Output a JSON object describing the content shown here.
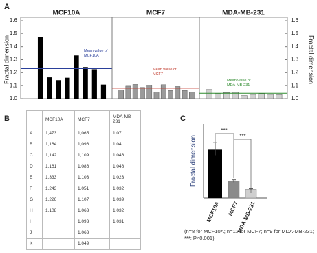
{
  "panel_labels": [
    "A",
    "B",
    "C"
  ],
  "chart_data": [
    {
      "type": "bar",
      "title": "MCF10A",
      "title_color": "#1f5fa8",
      "color": "#000000",
      "ylabel": "Fractal dimension",
      "values": [
        1.473,
        1.164,
        1.142,
        1.161,
        1.333,
        1.243,
        1.226,
        1.108
      ],
      "ylim": [
        1.0,
        1.6
      ],
      "yticks": [
        {
          "value": 1.0,
          "label": "1.0"
        },
        1.1,
        1.2,
        1.3,
        1.4,
        1.5,
        1.6
      ],
      "mean": 1.231,
      "mean_color": "#2a3f9a",
      "annotation": "Mean value of MCF10A"
    },
    {
      "type": "bar",
      "title": "MCF7",
      "title_color": "#8b1c3c",
      "color": "#9a9a9a",
      "values": [
        1.065,
        1.096,
        1.109,
        1.086,
        1.103,
        1.051,
        1.107,
        1.063,
        1.093,
        1.063,
        1.049
      ],
      "ylim": [
        1.0,
        1.6
      ],
      "mean": 1.08,
      "mean_color": "#c0392b",
      "annotation": "Mean value of MCF7"
    },
    {
      "type": "bar",
      "title": "MDA-MB-231",
      "title_color": "#2e8b2e",
      "color": "#d0d0d0",
      "ylabel": "Fractal dimension",
      "values": [
        1.07,
        1.04,
        1.046,
        1.048,
        1.023,
        1.032,
        1.039,
        1.032,
        1.031
      ],
      "ylim": [
        1.0,
        1.6
      ],
      "yticks": [
        {
          "value": 1.0,
          "label": "1.0"
        },
        1.1,
        1.2,
        1.3,
        1.4,
        1.5,
        1.6
      ],
      "mean": 1.041,
      "mean_color": "#2e8b2e",
      "annotation": "Mean value of MDA-MB-231"
    },
    {
      "type": "bar",
      "ylabel": "Fractal dimension",
      "categories": [
        "MCF10A",
        "MCF7",
        "MDA-MB-231"
      ],
      "colors": [
        "#000000",
        "#8a8a8a",
        "#cfcfcf"
      ],
      "category_colors": [
        "#000000",
        "#8b1c3c",
        "#2e8b2e"
      ],
      "values": [
        1.231,
        1.08,
        1.041
      ],
      "errors": [
        0.03,
        0.006,
        0.003
      ],
      "ylim": [
        1.0,
        1.35
      ],
      "annotations": [
        "***",
        "***"
      ],
      "note": "(n=8 for MCF10A; n=11 for MCF7; n=9 for MDA-MB-231; ***: P<0.001)"
    }
  ],
  "table": {
    "header": [
      null,
      "MCF10A",
      "MCF7",
      "MDA-MB-231"
    ],
    "rows": [
      [
        "A",
        "1,473",
        "1,065",
        "1,07"
      ],
      [
        "B",
        "1,164",
        "1,096",
        "1,04"
      ],
      [
        "C",
        "1,142",
        "1,109",
        "1,046"
      ],
      [
        "D",
        "1,161",
        "1,086",
        "1,048"
      ],
      [
        "E",
        "1,333",
        "1,103",
        "1,023"
      ],
      [
        "F",
        "1,243",
        "1,051",
        "1,032"
      ],
      [
        "G",
        "1,226",
        "1,107",
        "1,039"
      ],
      [
        "H",
        "1,108",
        "1,063",
        "1,032"
      ],
      [
        "I",
        null,
        "1,093",
        "1,031"
      ],
      [
        "J",
        null,
        "1,063",
        null
      ],
      [
        "K",
        null,
        "1,049",
        null
      ]
    ]
  }
}
